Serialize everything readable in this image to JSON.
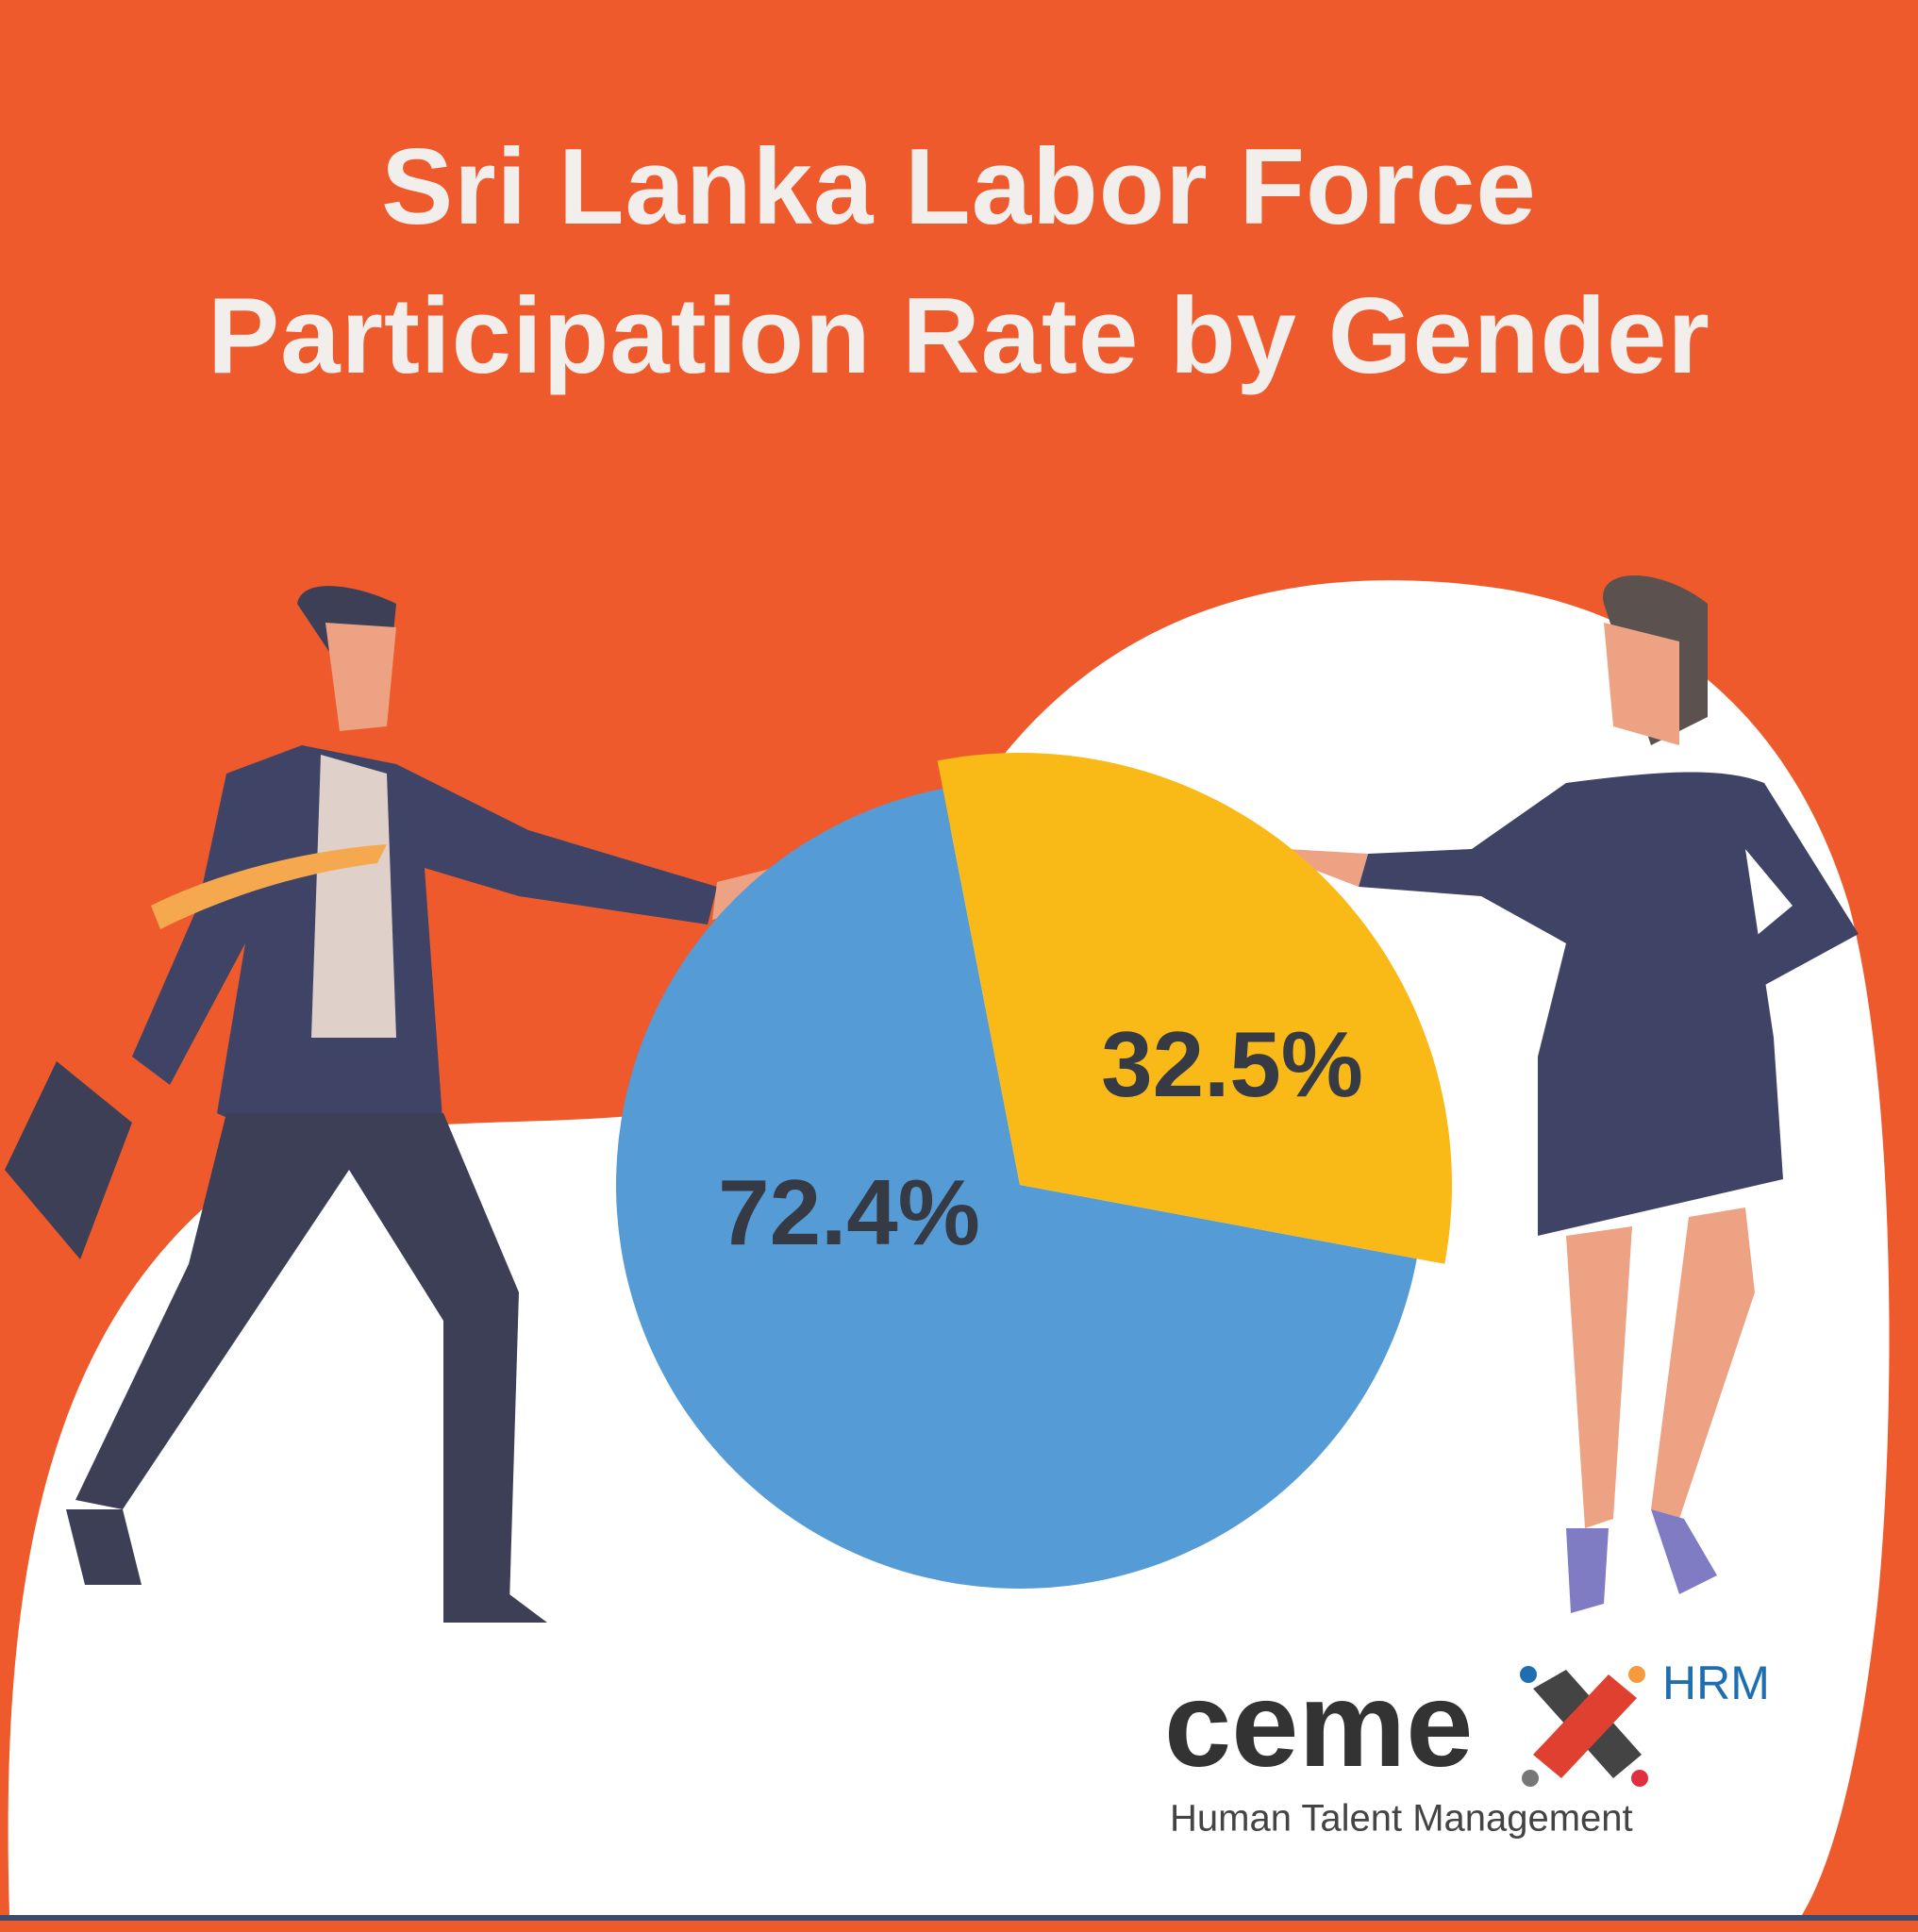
{
  "chart_data": {
    "type": "pie",
    "title": "Sri Lanka Labor Force Participation Rate by Gender",
    "categories": [
      null,
      null
    ],
    "values": [
      72.4,
      32.5
    ],
    "value_labels": [
      "72.4%",
      "32.5%"
    ],
    "colors": [
      "#559bd5",
      "#f9b916"
    ],
    "label_color": "#353a45"
  },
  "logo": {
    "wordmark": "ceme",
    "badge": "HRM",
    "tagline": "Human Talent Management"
  }
}
